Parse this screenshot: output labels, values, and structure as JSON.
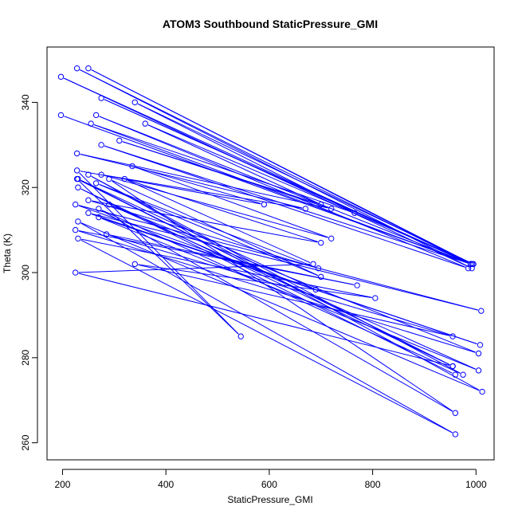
{
  "chart_data": {
    "type": "line",
    "title": "ATOM3 Southbound StaticPressure_GMI",
    "xlabel": "StaticPressure_GMI",
    "ylabel": "Theta (K)",
    "xlim": [
      170,
      1035
    ],
    "ylim": [
      256,
      353
    ],
    "xticks": [
      200,
      400,
      600,
      800,
      1000
    ],
    "yticks": [
      260,
      280,
      300,
      320,
      340
    ],
    "grid": false,
    "point_marker": "open-circle",
    "series_color": "#0000ff",
    "x": [
      197,
      990,
      197,
      992,
      228,
      990,
      250,
      993,
      275,
      990,
      275,
      985,
      265,
      990,
      255,
      765,
      340,
      995,
      360,
      700,
      310,
      720,
      228,
      670,
      275,
      720,
      335,
      590,
      228,
      545,
      228,
      955,
      230,
      690,
      225,
      1010,
      250,
      1008,
      270,
      1005,
      290,
      1005,
      225,
      770,
      285,
      955,
      340,
      805,
      230,
      960,
      230,
      1012,
      250,
      975,
      270,
      960,
      290,
      700,
      265,
      695,
      250,
      700,
      320,
      685,
      225,
      955,
      230,
      960
    ],
    "y": [
      337,
      302,
      346,
      301,
      348,
      302,
      348,
      302,
      341,
      302,
      330,
      301,
      337,
      302,
      335,
      314,
      340,
      302,
      335,
      316,
      331,
      315,
      328,
      315,
      323,
      308,
      325,
      316,
      324,
      285,
      322,
      278,
      322,
      296,
      316,
      291,
      314,
      283,
      313,
      277,
      316,
      281,
      310,
      297,
      309,
      285,
      302,
      294,
      308,
      262,
      312,
      272,
      323,
      276,
      315,
      267,
      322,
      299,
      321,
      301,
      317,
      307,
      322,
      302,
      300,
      278,
      320,
      276
    ]
  }
}
